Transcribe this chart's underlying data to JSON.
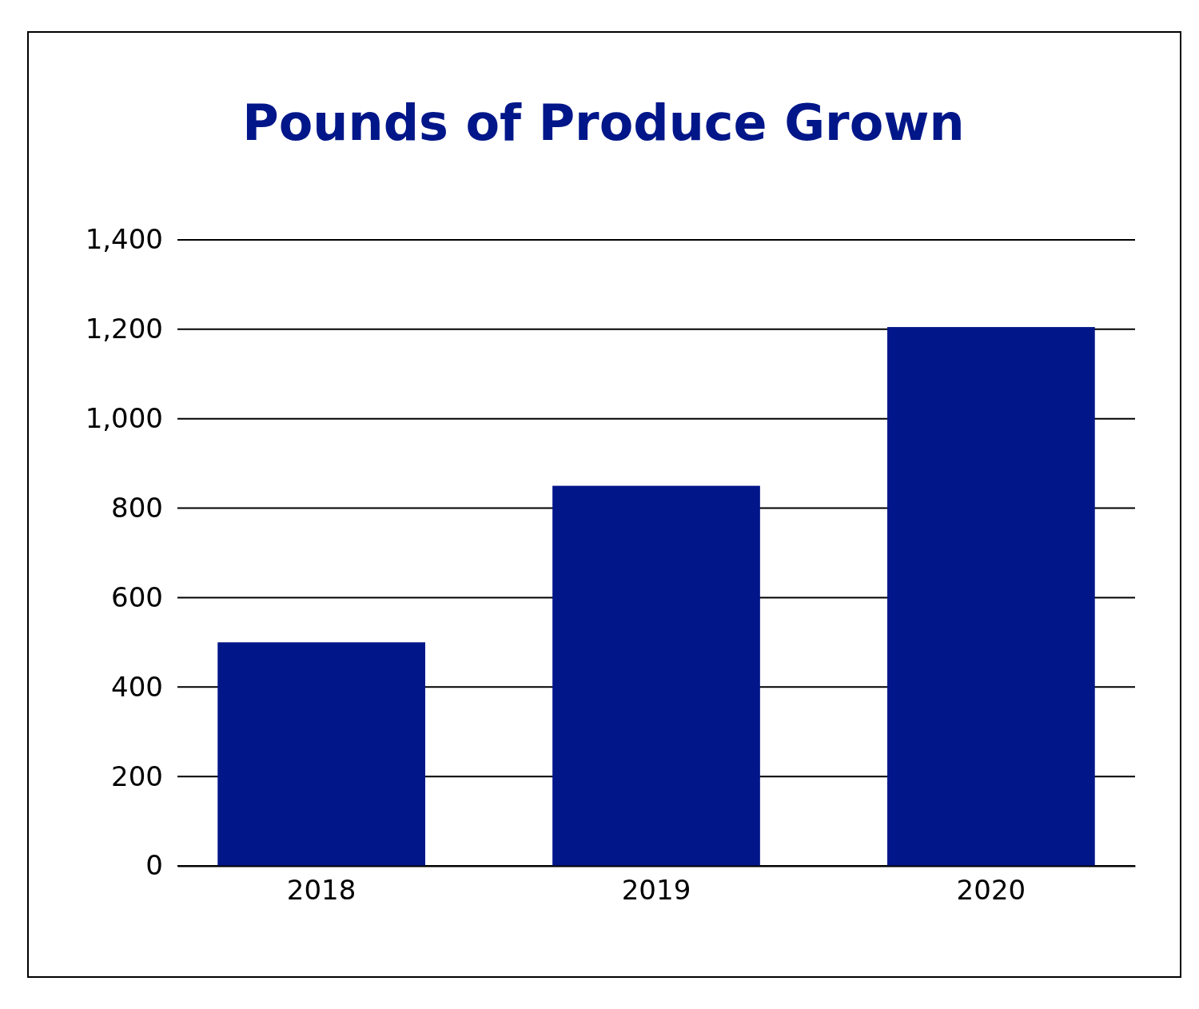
{
  "chart_data": {
    "type": "bar",
    "title": "Pounds of Produce Grown",
    "categories": [
      "2018",
      "2019",
      "2020"
    ],
    "values": [
      500,
      850,
      1205
    ],
    "color": "#001689",
    "ylim": [
      0,
      1400
    ],
    "yticks": [
      0,
      {
        "value": 200,
        "label": "200"
      },
      {
        "value": 400,
        "label": "400"
      },
      {
        "value": 600,
        "label": "600"
      },
      {
        "value": 800,
        "label": "800"
      },
      {
        "value": 1000,
        "label": "1,000"
      },
      {
        "value": 1200,
        "label": "1,200"
      },
      {
        "value": 1400,
        "label": "1,400"
      }
    ],
    "grid": "y"
  }
}
